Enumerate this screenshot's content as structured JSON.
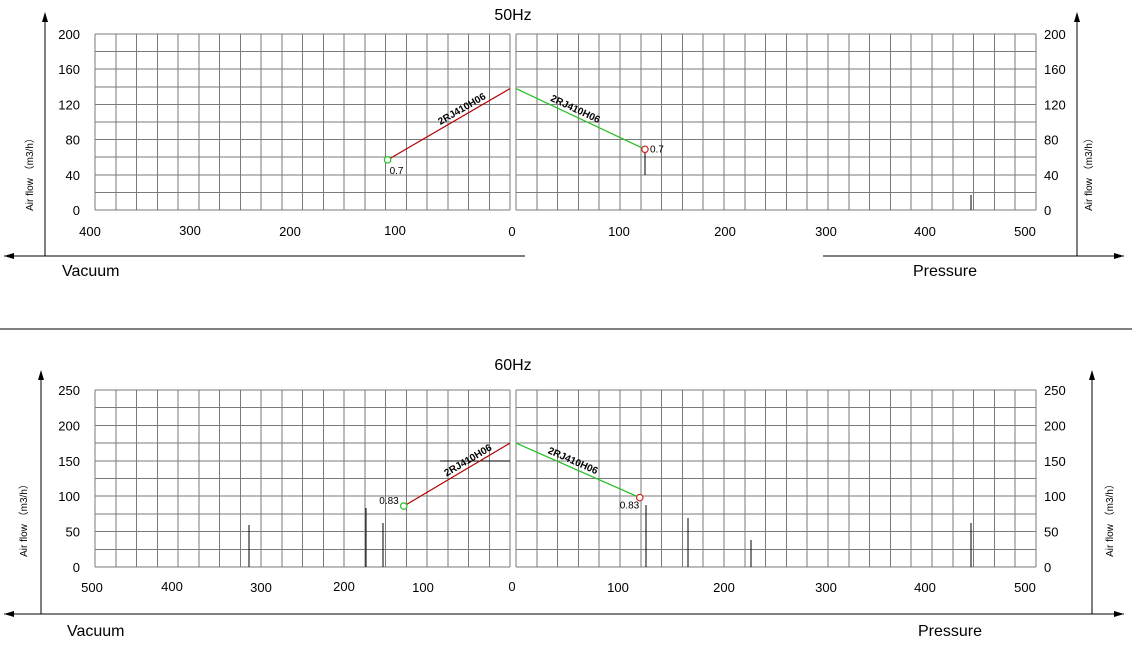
{
  "colors": {
    "vacuum_line": "#b00000",
    "pressure_line": "#22c022",
    "vacuum_marker": "#22c022",
    "pressure_marker": "#d02020",
    "grid": "#7a7a7a"
  },
  "chart_data": [
    {
      "type": "line",
      "title": "50Hz",
      "ylabel": "Air flow （m3/h）",
      "vacuum_label": "Vacuum",
      "pressure_label": "Pressure",
      "y_ticks": [
        "200",
        "160",
        "120",
        "80",
        "40",
        "0"
      ],
      "vacuum_x_ticks": [
        "400",
        "300",
        "200",
        "100",
        "0"
      ],
      "pressure_x_ticks": [
        "0",
        "100",
        "200",
        "300",
        "400",
        "500"
      ],
      "ylim": [
        0,
        200
      ],
      "vacuum_xlim": [
        400,
        0
      ],
      "pressure_xlim": [
        0,
        500
      ],
      "series": [
        {
          "side": "vacuum",
          "name": "2RJ410H06",
          "x": [
            118,
            0
          ],
          "y": [
            57,
            138
          ],
          "marker_label": "0.7"
        },
        {
          "side": "pressure",
          "name": "2RJ410H06",
          "x": [
            0,
            124
          ],
          "y": [
            138,
            69
          ],
          "marker_label": "0.7"
        }
      ]
    },
    {
      "type": "line",
      "title": "60Hz",
      "ylabel": "Air flow （m3/h）",
      "vacuum_label": "Vacuum",
      "pressure_label": "Pressure",
      "y_ticks": [
        "250",
        "200",
        "150",
        "100",
        "50",
        "0"
      ],
      "vacuum_x_ticks": [
        "500",
        "400",
        "300",
        "200",
        "100",
        "0"
      ],
      "pressure_x_ticks": [
        "0",
        "100",
        "200",
        "300",
        "400",
        "500"
      ],
      "ylim": [
        0,
        250
      ],
      "vacuum_xlim": [
        500,
        0
      ],
      "pressure_xlim": [
        0,
        500
      ],
      "series": [
        {
          "side": "vacuum",
          "name": "2RJ410H06",
          "x": [
            128,
            0
          ],
          "y": [
            86,
            175
          ],
          "marker_label": "0.83"
        },
        {
          "side": "pressure",
          "name": "2RJ410H06",
          "x": [
            0,
            119
          ],
          "y": [
            175,
            98
          ],
          "marker_label": "0.83"
        }
      ]
    }
  ]
}
